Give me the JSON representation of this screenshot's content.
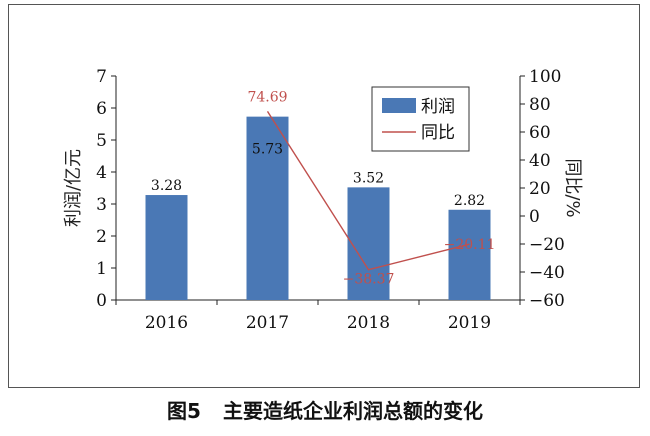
{
  "caption": {
    "figure_number": "图5",
    "title": "主要造纸企业利润总额的变化"
  },
  "chart_data": {
    "type": "bar+line",
    "categories": [
      "2016",
      "2017",
      "2018",
      "2019"
    ],
    "ylabel": "利润/亿元",
    "y2label": "同比/%",
    "ylim": [
      0,
      7
    ],
    "y2lim": [
      -60,
      100
    ],
    "yticks": [
      "0",
      "1",
      "2",
      "3",
      "4",
      "5",
      "6",
      "7"
    ],
    "y2ticks": [
      "−60",
      "−40",
      "−20",
      "0",
      "20",
      "40",
      "60",
      "80",
      "100"
    ],
    "legend_position": "top-right",
    "series": [
      {
        "name": "利润",
        "kind": "bar",
        "axis": "left",
        "color": "#4a78b5",
        "values": [
          3.28,
          5.73,
          3.52,
          2.82
        ],
        "labels": [
          "3.28",
          "5.73",
          "3.52",
          "2.82"
        ]
      },
      {
        "name": "同比",
        "kind": "line",
        "axis": "right",
        "color": "#c0504d",
        "x": [
          "2017",
          "2018",
          "2019"
        ],
        "values": [
          74.69,
          -38.37,
          -20.11
        ],
        "labels": [
          "74.69",
          "−38.37",
          "−20.11"
        ]
      }
    ]
  }
}
